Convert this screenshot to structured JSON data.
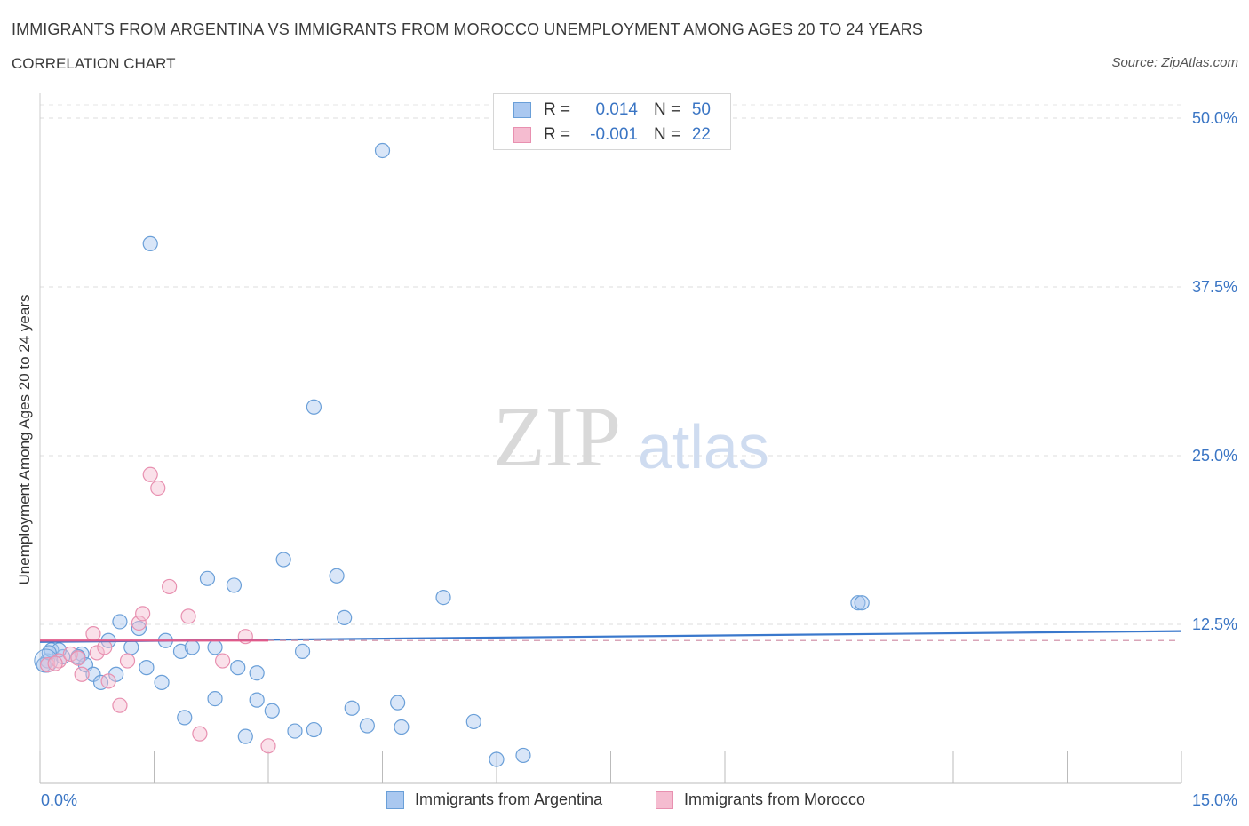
{
  "title": "IMMIGRANTS FROM ARGENTINA VS IMMIGRANTS FROM MOROCCO UNEMPLOYMENT AMONG AGES 20 TO 24 YEARS",
  "subtitle": "CORRELATION CHART",
  "source": "Source: ZipAtlas.com",
  "colors": {
    "argentina_fill": "#aac8f0",
    "argentina_stroke": "#6a9fd8",
    "argentina_line": "#3a78cc",
    "morocco_fill": "#f5bcd0",
    "morocco_stroke": "#e890b0",
    "morocco_line": "#e05a8a",
    "axis_text": "#3a75c4"
  },
  "stats": {
    "argentina": {
      "r_label": "R =",
      "r_value": "0.014",
      "n_label": "N =",
      "n_value": "50"
    },
    "morocco": {
      "r_label": "R =",
      "r_value": "-0.001",
      "n_label": "N =",
      "n_value": "22"
    }
  },
  "legend": {
    "argentina": "Immigrants from Argentina",
    "morocco": "Immigrants from Morocco"
  },
  "watermark": {
    "part1": "ZIP",
    "part2": "atlas"
  },
  "chart_data": {
    "type": "scatter",
    "title": "IMMIGRANTS FROM ARGENTINA VS IMMIGRANTS FROM MOROCCO UNEMPLOYMENT AMONG AGES 20 TO 24 YEARS",
    "xlabel": "",
    "ylabel": "Unemployment Among Ages 20 to 24 years",
    "xlim": [
      0,
      15
    ],
    "ylim": [
      0,
      50
    ],
    "x_tick_labels": [
      "0.0%",
      "15.0%"
    ],
    "y_ticks": [
      12.5,
      25,
      37.5,
      50
    ],
    "y_tick_labels": [
      "12.5%",
      "25.0%",
      "37.5%",
      "50.0%"
    ],
    "grid": true,
    "legend_position": "bottom-center",
    "series": [
      {
        "name": "Immigrants from Argentina",
        "trend": {
          "x": [
            0,
            15
          ],
          "y": [
            11.2,
            12.0
          ],
          "extends_dashed": false
        },
        "points": [
          {
            "x": 0.1,
            "y": 9.8
          },
          {
            "x": 0.15,
            "y": 10.6
          },
          {
            "x": 0.3,
            "y": 10.1
          },
          {
            "x": 0.55,
            "y": 10.3
          },
          {
            "x": 0.6,
            "y": 9.5
          },
          {
            "x": 0.7,
            "y": 8.8
          },
          {
            "x": 0.9,
            "y": 11.3
          },
          {
            "x": 0.8,
            "y": 8.2
          },
          {
            "x": 1.0,
            "y": 8.8
          },
          {
            "x": 1.05,
            "y": 12.7
          },
          {
            "x": 1.2,
            "y": 10.8
          },
          {
            "x": 1.3,
            "y": 12.2
          },
          {
            "x": 1.4,
            "y": 9.3
          },
          {
            "x": 1.6,
            "y": 8.2
          },
          {
            "x": 1.65,
            "y": 11.3
          },
          {
            "x": 1.85,
            "y": 10.5
          },
          {
            "x": 2.0,
            "y": 10.8
          },
          {
            "x": 1.9,
            "y": 5.6
          },
          {
            "x": 2.2,
            "y": 15.9
          },
          {
            "x": 2.3,
            "y": 7.0
          },
          {
            "x": 2.3,
            "y": 10.8
          },
          {
            "x": 2.55,
            "y": 15.4
          },
          {
            "x": 2.6,
            "y": 9.3
          },
          {
            "x": 2.7,
            "y": 4.2
          },
          {
            "x": 2.85,
            "y": 6.9
          },
          {
            "x": 2.85,
            "y": 8.9
          },
          {
            "x": 3.05,
            "y": 6.1
          },
          {
            "x": 3.2,
            "y": 17.3
          },
          {
            "x": 3.35,
            "y": 4.6
          },
          {
            "x": 3.45,
            "y": 10.5
          },
          {
            "x": 3.6,
            "y": 28.6
          },
          {
            "x": 3.6,
            "y": 4.7
          },
          {
            "x": 3.9,
            "y": 16.1
          },
          {
            "x": 4.0,
            "y": 13.0
          },
          {
            "x": 4.1,
            "y": 6.3
          },
          {
            "x": 4.3,
            "y": 5.0
          },
          {
            "x": 4.5,
            "y": 47.6
          },
          {
            "x": 4.7,
            "y": 6.7
          },
          {
            "x": 4.75,
            "y": 4.9
          },
          {
            "x": 5.3,
            "y": 14.5
          },
          {
            "x": 5.7,
            "y": 5.3
          },
          {
            "x": 6.0,
            "y": 2.5
          },
          {
            "x": 6.35,
            "y": 2.8
          },
          {
            "x": 1.45,
            "y": 40.7
          },
          {
            "x": 10.75,
            "y": 14.1
          },
          {
            "x": 10.8,
            "y": 14.1
          },
          {
            "x": 0.05,
            "y": 9.5
          },
          {
            "x": 0.25,
            "y": 10.6
          },
          {
            "x": 0.5,
            "y": 10.1
          },
          {
            "x": 0.12,
            "y": 10.4
          }
        ]
      },
      {
        "name": "Immigrants from Morocco",
        "trend": {
          "x": [
            0,
            3.0
          ],
          "y": [
            11.3,
            11.3
          ],
          "dashed_to": 15
        },
        "points": [
          {
            "x": 0.1,
            "y": 9.5
          },
          {
            "x": 0.25,
            "y": 9.8
          },
          {
            "x": 0.4,
            "y": 10.3
          },
          {
            "x": 0.5,
            "y": 10.0
          },
          {
            "x": 0.55,
            "y": 8.8
          },
          {
            "x": 0.7,
            "y": 11.8
          },
          {
            "x": 0.75,
            "y": 10.4
          },
          {
            "x": 0.85,
            "y": 10.8
          },
          {
            "x": 0.9,
            "y": 8.3
          },
          {
            "x": 1.05,
            "y": 6.5
          },
          {
            "x": 1.15,
            "y": 9.8
          },
          {
            "x": 1.3,
            "y": 12.6
          },
          {
            "x": 1.35,
            "y": 13.3
          },
          {
            "x": 1.45,
            "y": 23.6
          },
          {
            "x": 1.55,
            "y": 22.6
          },
          {
            "x": 1.7,
            "y": 15.3
          },
          {
            "x": 1.95,
            "y": 13.1
          },
          {
            "x": 2.1,
            "y": 4.4
          },
          {
            "x": 2.4,
            "y": 9.8
          },
          {
            "x": 2.7,
            "y": 11.6
          },
          {
            "x": 3.0,
            "y": 3.5
          },
          {
            "x": 0.2,
            "y": 9.6
          }
        ]
      }
    ]
  }
}
